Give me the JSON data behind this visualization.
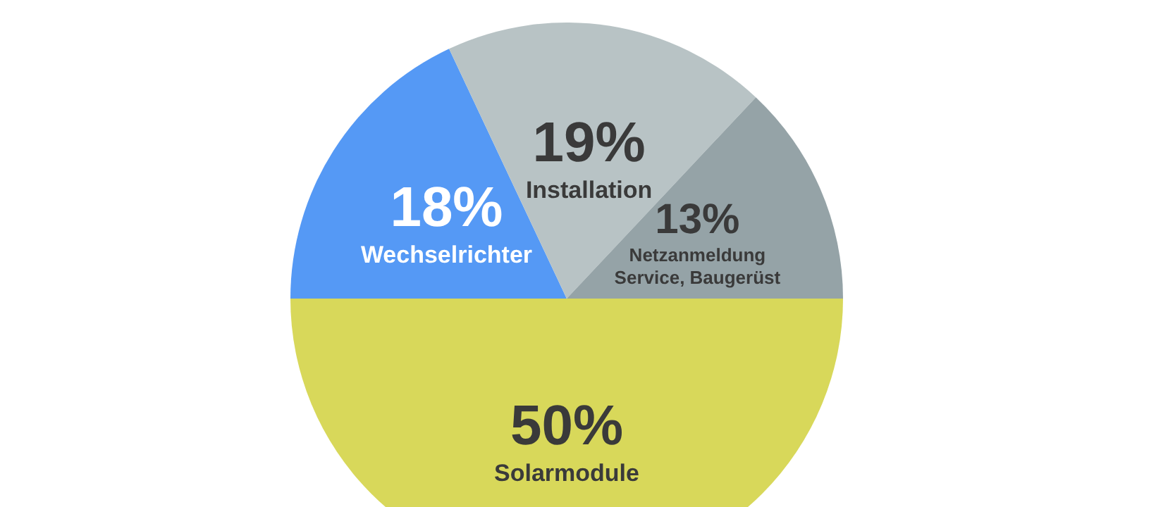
{
  "chart_data": {
    "type": "pie",
    "categories": [
      "Solarmodule",
      "Wechselrichter",
      "Installation",
      "Netzanmeldung\nService, Baugerüst"
    ],
    "values": [
      50,
      18,
      19,
      13
    ],
    "value_labels": [
      "50%",
      "18%",
      "19%",
      "13%"
    ],
    "colors": [
      "#d8d85a",
      "#5599f5",
      "#b8c3c5",
      "#95a3a7"
    ],
    "legend": false
  }
}
